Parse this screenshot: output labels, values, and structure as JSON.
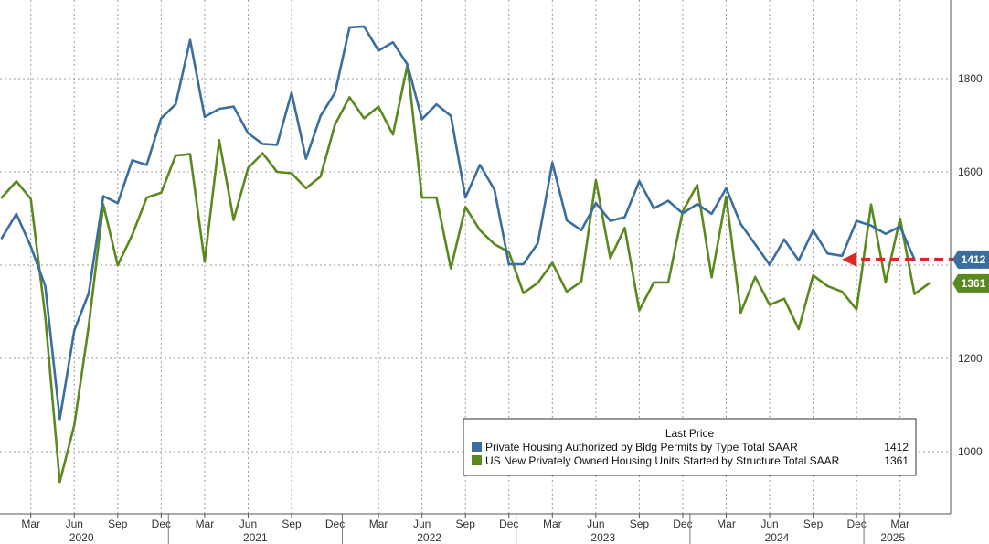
{
  "chart_data": {
    "type": "line",
    "title": "",
    "xlabel": "",
    "ylabel": "",
    "x_start": "2020-01",
    "x_tick_labels": [
      "Mar",
      "Jun",
      "Sep",
      "Dec",
      "Mar",
      "Jun",
      "Sep",
      "Dec",
      "Mar",
      "Jun",
      "Sep",
      "Dec",
      "Mar",
      "Jun",
      "Sep",
      "Dec",
      "Mar",
      "Jun",
      "Sep",
      "Dec",
      "Mar"
    ],
    "year_labels": [
      "2020",
      "2021",
      "2022",
      "2023",
      "2024",
      "2025"
    ],
    "y_ticks": [
      "1000",
      "1200",
      "1400",
      "1600",
      "1800"
    ],
    "ylim": [
      890,
      1970
    ],
    "grid": true,
    "legend": {
      "placement": "bottom-right",
      "title": "Last Price",
      "entries": [
        {
          "label": "Private Housing Authorized by Bldg Permits by Type Total SAAR",
          "value": "1412"
        },
        {
          "label": "US New Privately Owned Housing Units Started by Structure Total SAAR",
          "value": "1361"
        }
      ]
    },
    "series": [
      {
        "name": "Private Housing Authorized by Bldg Permits by Type Total SAAR",
        "color": "#3a6e9e",
        "last_label": "1412",
        "values": [
          1458,
          1510,
          1440,
          1355,
          1070,
          1260,
          1340,
          1548,
          1533,
          1625,
          1615,
          1715,
          1745,
          1883,
          1718,
          1735,
          1740,
          1683,
          1660,
          1658,
          1770,
          1628,
          1720,
          1770,
          1910,
          1912,
          1860,
          1878,
          1830,
          1713,
          1745,
          1720,
          1545,
          1615,
          1562,
          1402,
          1402,
          1447,
          1620,
          1496,
          1475,
          1533,
          1495,
          1503,
          1580,
          1522,
          1538,
          1511,
          1531,
          1510,
          1565,
          1488,
          1445,
          1401,
          1455,
          1410,
          1475,
          1425,
          1420,
          1495,
          1485,
          1467,
          1483,
          1412
        ]
      },
      {
        "name": "US New Privately Owned Housing Units Started by Structure Total SAAR",
        "color": "#5a8a1e",
        "last_label": "1361",
        "values": [
          1545,
          1580,
          1542,
          1290,
          935,
          1057,
          1270,
          1530,
          1400,
          1465,
          1545,
          1555,
          1635,
          1638,
          1407,
          1668,
          1497,
          1608,
          1640,
          1600,
          1597,
          1565,
          1590,
          1702,
          1760,
          1715,
          1740,
          1680,
          1830,
          1545,
          1545,
          1393,
          1525,
          1475,
          1445,
          1428,
          1340,
          1362,
          1405,
          1343,
          1365,
          1582,
          1415,
          1480,
          1303,
          1363,
          1363,
          1515,
          1572,
          1374,
          1547,
          1298,
          1375,
          1315,
          1328,
          1263,
          1378,
          1355,
          1343,
          1305,
          1530,
          1363,
          1500,
          1338,
          1361
        ]
      }
    ],
    "annotation": {
      "type": "dashed-arrow",
      "color": "#d42a2a",
      "y": 1412,
      "from_index": 66,
      "to_index": 58
    }
  }
}
